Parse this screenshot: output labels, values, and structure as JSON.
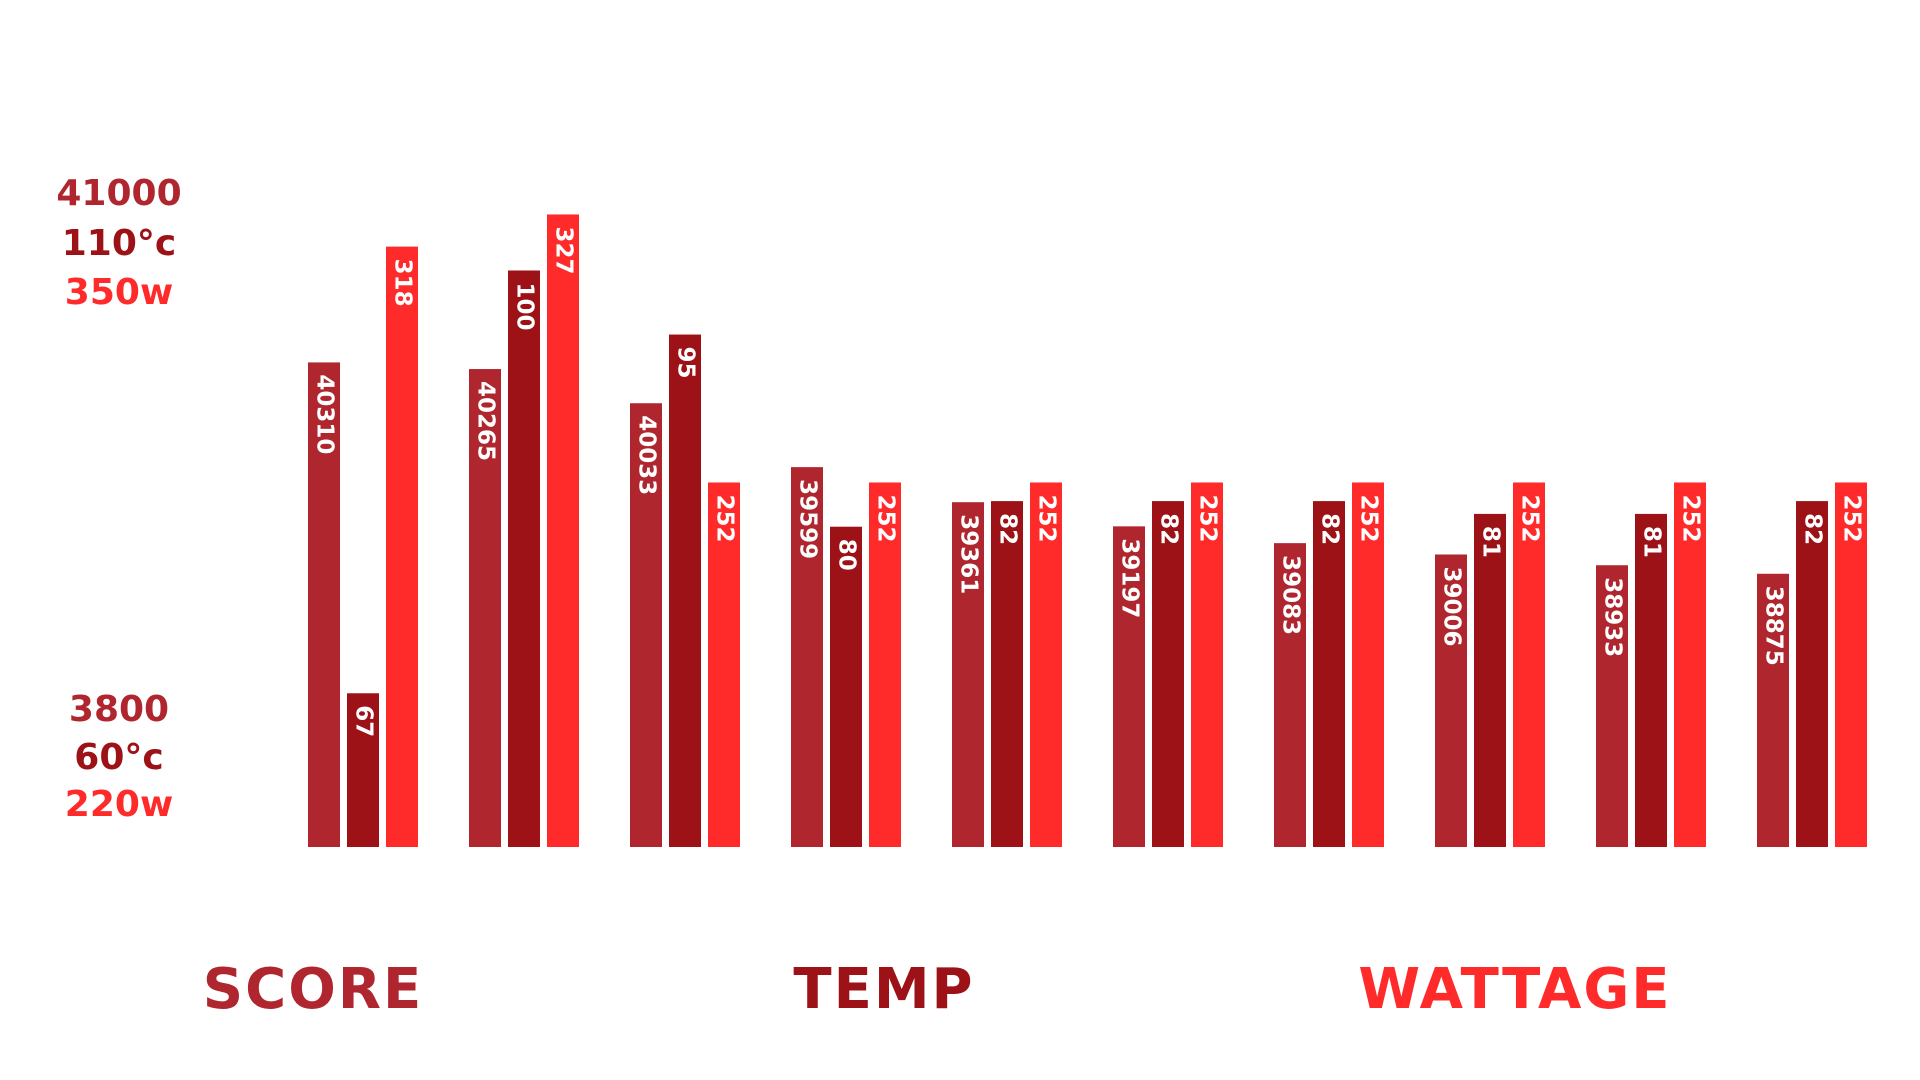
{
  "chart_data": {
    "type": "bar",
    "y_labels_top": [
      "41000",
      "110°c",
      "350w"
    ],
    "y_labels_bottom": [
      "3800",
      "60°c",
      "220w"
    ],
    "series": [
      {
        "name": "SCORE",
        "color": "#b0262e",
        "ylim": [
          37020,
          41630
        ],
        "values": [
          40310,
          40265,
          40033,
          39599,
          39361,
          39197,
          39083,
          39006,
          38933,
          38875
        ]
      },
      {
        "name": "TEMP",
        "color": "#9c1216",
        "ylim": [
          55,
          108
        ],
        "values": [
          67,
          100,
          95,
          80,
          82,
          82,
          82,
          81,
          81,
          82
        ]
      },
      {
        "name": "WATTAGE",
        "color": "#ff2a2a",
        "ylim": [
          150,
          340
        ],
        "values": [
          318,
          327,
          252,
          252,
          252,
          252,
          252,
          252,
          252,
          252
        ]
      }
    ]
  }
}
